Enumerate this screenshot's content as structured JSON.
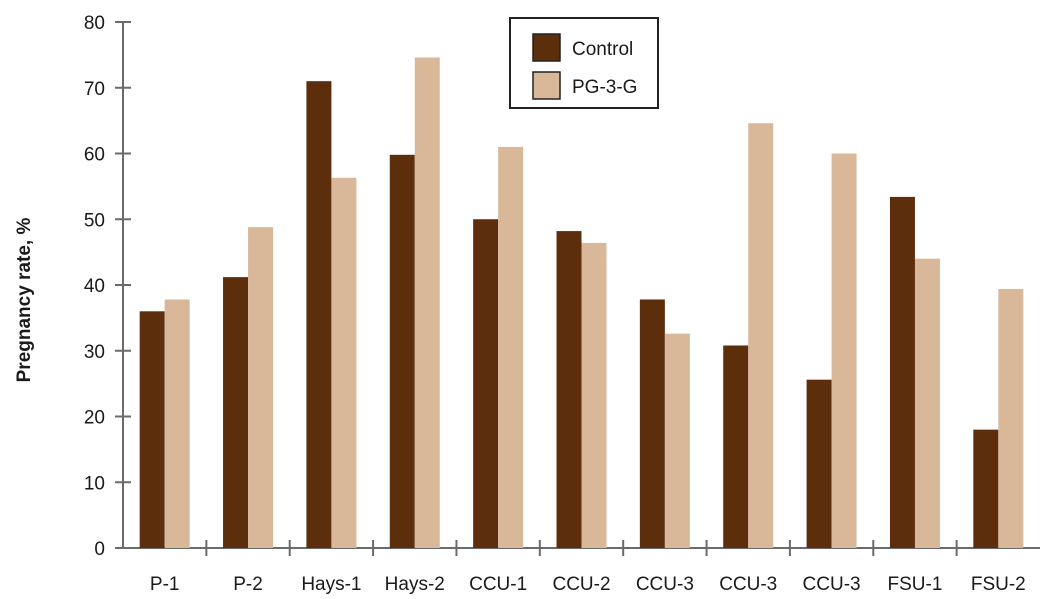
{
  "chart_data": {
    "type": "bar",
    "title": "",
    "xlabel": "",
    "ylabel": "Pregnancy rate, %",
    "ylim": [
      0,
      80
    ],
    "yticks": [
      0,
      10,
      20,
      30,
      40,
      50,
      60,
      70,
      80
    ],
    "categories": [
      "P-1",
      "P-2",
      "Hays-1",
      "Hays-2",
      "CCU-1",
      "CCU-2",
      "CCU-3",
      "CCU-3",
      "CCU-3",
      "FSU-1",
      "FSU-2"
    ],
    "series": [
      {
        "name": "Control",
        "color": "#5c2e0b",
        "values": [
          36,
          41.2,
          71,
          59.8,
          50,
          48.2,
          37.8,
          30.8,
          25.6,
          53.4,
          18
        ]
      },
      {
        "name": "PG-3-G",
        "color": "#d9b89a",
        "values": [
          37.8,
          48.8,
          56.3,
          74.6,
          61,
          46.4,
          32.6,
          64.6,
          60,
          44,
          39.4
        ]
      }
    ],
    "legend": {
      "placement": "top-center"
    },
    "grid": false
  }
}
